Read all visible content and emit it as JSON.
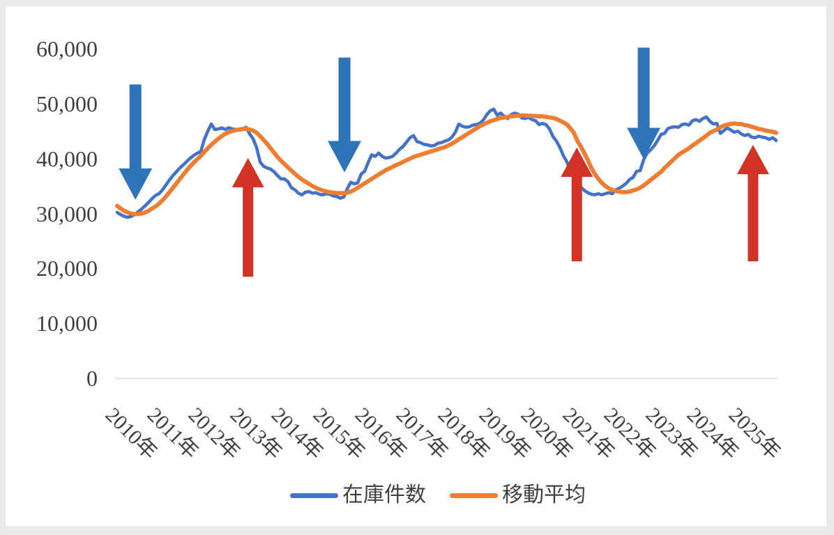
{
  "chart": {
    "background": "#ffffff",
    "frame_background": "#eaeaea",
    "text_color": "#3f3f3f",
    "axis_line_color": "#d8d8d8"
  },
  "legend": {
    "items": [
      {
        "label": "在庫件数",
        "color": "#4472c4"
      },
      {
        "label": "移動平均",
        "color": "#ed7d31"
      }
    ]
  },
  "chart_data": {
    "type": "line",
    "title": "",
    "xlabel": "",
    "ylabel": "",
    "ylim": [
      0,
      60000
    ],
    "grid": false,
    "legend_position": "bottom",
    "x_unit": "month",
    "x_start": "2010-01",
    "x_end": "2025-10",
    "x_tick_labels": [
      "2010年",
      "2011年",
      "2012年",
      "2013年",
      "2014年",
      "2015年",
      "2016年",
      "2017年",
      "2018年",
      "2019年",
      "2020年",
      "2021年",
      "2022年",
      "2023年",
      "2024年",
      "2025年"
    ],
    "y_tick_values": [
      0,
      10000,
      20000,
      30000,
      40000,
      50000,
      60000
    ],
    "y_tick_labels": [
      "0",
      "10,000",
      "20,000",
      "30,000",
      "40,000",
      "50,000",
      "60,000"
    ],
    "series": [
      {
        "name": "在庫件数",
        "color": "#4472c4",
        "stroke_width": 4.6,
        "values": [
          30200,
          29800,
          29500,
          29300,
          29500,
          29800,
          30300,
          30800,
          31400,
          32000,
          32700,
          33300,
          33600,
          34300,
          35200,
          36100,
          36900,
          37600,
          38300,
          38900,
          39500,
          40100,
          40600,
          41000,
          41300,
          43500,
          45000,
          46300,
          45300,
          45400,
          45600,
          45300,
          45600,
          45400,
          45300,
          45200,
          45300,
          45700,
          44500,
          43600,
          42000,
          39400,
          38600,
          38300,
          38100,
          37600,
          36900,
          36300,
          36300,
          35800,
          34700,
          34300,
          33700,
          33400,
          33900,
          34000,
          33700,
          33800,
          33500,
          33400,
          33600,
          33500,
          33200,
          33100,
          32800,
          33000,
          34500,
          35700,
          35400,
          35600,
          37200,
          37700,
          39300,
          40700,
          40400,
          41000,
          40400,
          40100,
          40200,
          40400,
          41000,
          41700,
          42200,
          43000,
          43800,
          44200,
          43100,
          42900,
          42600,
          42500,
          42300,
          42400,
          42800,
          42900,
          43200,
          43400,
          43900,
          44800,
          46300,
          45900,
          45700,
          45800,
          46100,
          46200,
          46400,
          47000,
          48000,
          48700,
          49000,
          47900,
          48300,
          47700,
          47300,
          48000,
          48300,
          48100,
          47400,
          47300,
          47500,
          47100,
          46900,
          46200,
          46400,
          46200,
          45400,
          44000,
          43200,
          42000,
          40500,
          39400,
          37800,
          36700,
          35500,
          34800,
          34200,
          33800,
          33500,
          33400,
          33600,
          33400,
          33600,
          33800,
          33600,
          34300,
          34600,
          35000,
          35500,
          36200,
          36600,
          37700,
          37800,
          39800,
          41000,
          41600,
          42300,
          43300,
          44400,
          44600,
          45500,
          45700,
          45800,
          45700,
          46200,
          46300,
          46100,
          46900,
          47100,
          46800,
          47300,
          47600,
          46800,
          46300,
          46400,
          44600,
          45100,
          45600,
          45200,
          44800,
          45000,
          44500,
          44200,
          44400,
          43900,
          43800,
          44100,
          43900,
          43800,
          43500,
          43800,
          43300
        ]
      },
      {
        "name": "移動平均",
        "color": "#ed7d31",
        "stroke_width": 6,
        "values": [
          31400,
          30900,
          30500,
          30200,
          30000,
          29900,
          29900,
          30000,
          30200,
          30500,
          30900,
          31300,
          31800,
          32400,
          33100,
          33900,
          34700,
          35500,
          36300,
          37100,
          37900,
          38600,
          39300,
          39900,
          40500,
          41200,
          41900,
          42500,
          43100,
          43600,
          44100,
          44500,
          44800,
          45000,
          45200,
          45300,
          45400,
          45400,
          45300,
          45100,
          44700,
          44100,
          43400,
          42700,
          41900,
          41100,
          40300,
          39600,
          39000,
          38400,
          37800,
          37200,
          36700,
          36200,
          35800,
          35400,
          35000,
          34700,
          34400,
          34200,
          34000,
          33900,
          33800,
          33700,
          33700,
          33700,
          33800,
          34000,
          34300,
          34700,
          35100,
          35500,
          35900,
          36300,
          36700,
          37100,
          37500,
          37900,
          38200,
          38500,
          38800,
          39100,
          39400,
          39700,
          40000,
          40300,
          40500,
          40700,
          40900,
          41100,
          41300,
          41500,
          41700,
          41900,
          42100,
          42400,
          42700,
          43100,
          43500,
          43900,
          44300,
          44700,
          45100,
          45500,
          45900,
          46200,
          46500,
          46800,
          47000,
          47200,
          47400,
          47500,
          47600,
          47700,
          47750,
          47800,
          47850,
          47850,
          47800,
          47800,
          47750,
          47700,
          47700,
          47600,
          47500,
          47400,
          47200,
          46900,
          46600,
          46200,
          45500,
          44700,
          43200,
          42200,
          41000,
          39700,
          38300,
          37200,
          36300,
          35600,
          35000,
          34600,
          34300,
          34100,
          34000,
          33900,
          33900,
          34000,
          34200,
          34400,
          34700,
          35100,
          35600,
          36100,
          36600,
          37100,
          37600,
          38300,
          38900,
          39500,
          40100,
          40700,
          41100,
          41500,
          41900,
          42400,
          42800,
          43300,
          43700,
          44200,
          44700,
          45000,
          45300,
          45700,
          46000,
          46200,
          46300,
          46400,
          46300,
          46300,
          46100,
          46000,
          45800,
          45600,
          45400,
          45300,
          45100,
          45000,
          44900,
          44700
        ]
      }
    ],
    "annotations": {
      "down_arrow_color": "#2e74b9",
      "up_arrow_color": "#d13327",
      "down_arrows": [
        {
          "x_year": 0.44,
          "from_value": 53500,
          "to_value": 32500
        },
        {
          "x_year": 5.47,
          "from_value": 58400,
          "to_value": 37500
        },
        {
          "x_year": 12.67,
          "from_value": 60200,
          "to_value": 39900
        }
      ],
      "up_arrows": [
        {
          "x_year": 3.15,
          "from_value": 18500,
          "to_value": 40100
        },
        {
          "x_year": 11.06,
          "from_value": 21300,
          "to_value": 42000
        },
        {
          "x_year": 15.3,
          "from_value": 21300,
          "to_value": 42500
        }
      ]
    }
  }
}
